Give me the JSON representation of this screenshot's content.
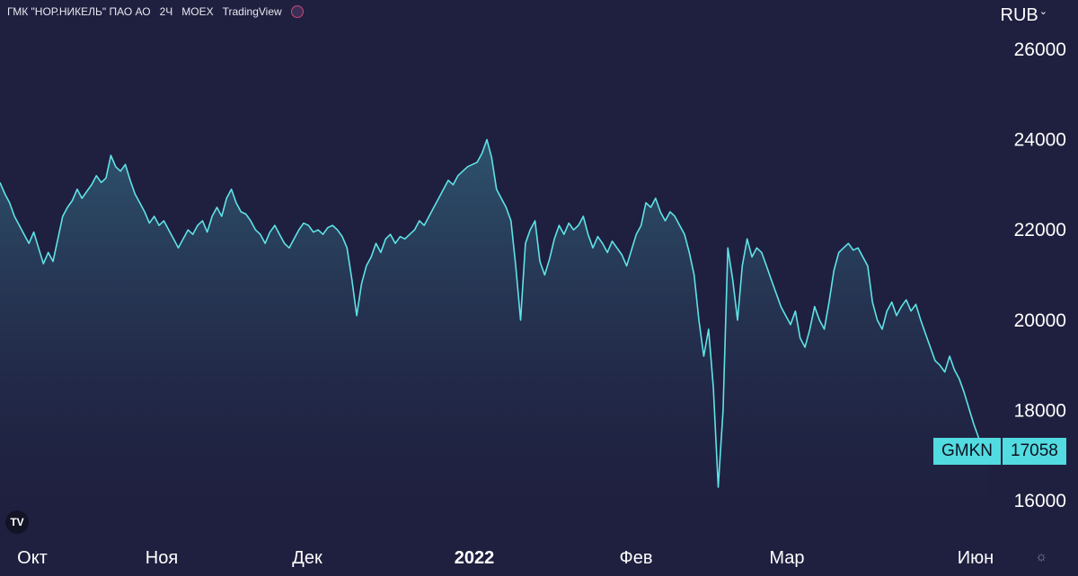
{
  "header": {
    "ticker_name": "ГМК \"НОР.НИКЕЛЬ\" ПАО АО",
    "interval": "2Ч",
    "exchange": "MOEX",
    "brand": "TradingView"
  },
  "currency": "RUB",
  "price_badge": {
    "symbol": "GMKN",
    "price": "17058"
  },
  "colors": {
    "background": "#1f1f3f",
    "line": "#5ee3e6",
    "badge": "#52dbe0"
  },
  "icons": [
    "tradingview-logo-icon",
    "settings-icon",
    "chevron-down-icon"
  ],
  "chart_data": {
    "type": "area",
    "ylim": [
      15000,
      27000
    ],
    "y_ticks": [
      "26000",
      "24000",
      "22000",
      "20000",
      "18000",
      "16000"
    ],
    "x_ticks": [
      {
        "label": "Окт",
        "t": 0.03,
        "bold": false
      },
      {
        "label": "Ноя",
        "t": 0.15,
        "bold": false
      },
      {
        "label": "Дек",
        "t": 0.285,
        "bold": false
      },
      {
        "label": "2022",
        "t": 0.44,
        "bold": true
      },
      {
        "label": "Фев",
        "t": 0.59,
        "bold": false
      },
      {
        "label": "Мар",
        "t": 0.73,
        "bold": false
      },
      {
        "label": "Июн",
        "t": 0.905,
        "bold": false
      }
    ],
    "series": [
      {
        "values": [
          23050,
          22800,
          22600,
          22300,
          22100,
          21900,
          21700,
          21950,
          21600,
          21250,
          21500,
          21300,
          21800,
          22300,
          22500,
          22650,
          22900,
          22700,
          22850,
          23000,
          23200,
          23050,
          23150,
          23650,
          23400,
          23300,
          23450,
          23100,
          22800,
          22600,
          22400,
          22150,
          22300,
          22100,
          22200,
          22000,
          21800,
          21600,
          21800,
          22000,
          21900,
          22100,
          22200,
          21950,
          22300,
          22500,
          22300,
          22700,
          22900,
          22600,
          22400,
          22350,
          22200,
          22000,
          21900,
          21700,
          21950,
          22100,
          21900,
          21700,
          21600,
          21800,
          22000,
          22150,
          22100,
          21950,
          22000,
          21900,
          22050,
          22100,
          22000,
          21850,
          21600,
          20900,
          20100,
          20800,
          21200,
          21400,
          21700,
          21500,
          21800,
          21900,
          21700,
          21850,
          21800,
          21900,
          22000,
          22200,
          22100,
          22300,
          22500,
          22700,
          22900,
          23100,
          23000,
          23200,
          23300,
          23400,
          23450,
          23500,
          23700,
          24000,
          23600,
          22900,
          22700,
          22500,
          22200,
          21200,
          20000,
          21700,
          22000,
          22200,
          21300,
          21000,
          21350,
          21800,
          22100,
          21900,
          22150,
          22000,
          22100,
          22300,
          21900,
          21600,
          21850,
          21700,
          21500,
          21750,
          21600,
          21450,
          21200,
          21550,
          21900,
          22100,
          22600,
          22500,
          22700,
          22400,
          22200,
          22400,
          22300,
          22100,
          21900,
          21500,
          21000,
          20000,
          19200,
          19800,
          18500,
          16300,
          18000,
          21600,
          20900,
          20000,
          21200,
          21800,
          21400,
          21600,
          21500,
          21200,
          20900,
          20600,
          20300,
          20100,
          19900,
          20200,
          19600,
          19400,
          19800,
          20300,
          20000,
          19800,
          20400,
          21100,
          21500,
          21600,
          21700,
          21550,
          21600,
          21400,
          21200,
          20400,
          20000,
          19800,
          20200,
          20400,
          20100,
          20300,
          20450,
          20200,
          20350,
          20000,
          19700,
          19400,
          19100,
          19000,
          18850,
          19200,
          18900,
          18700,
          18400,
          18050,
          17700,
          17400,
          17100,
          17058
        ]
      }
    ]
  }
}
